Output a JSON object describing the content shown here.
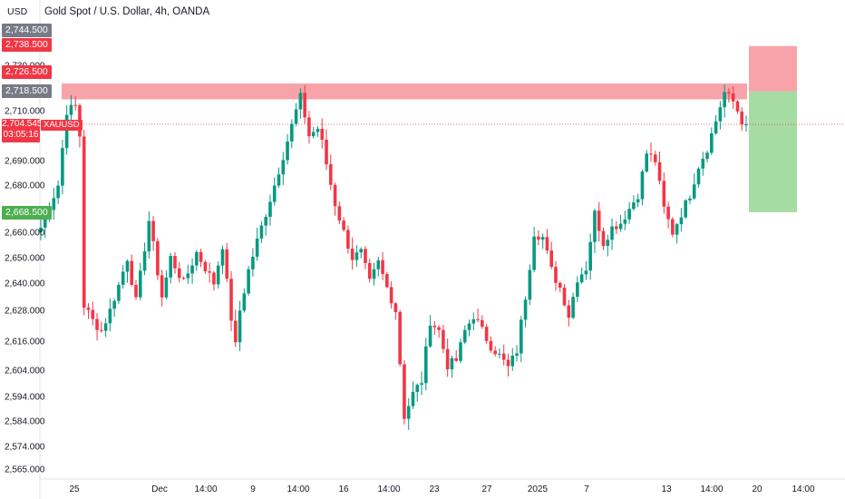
{
  "header": {
    "unit": "USD",
    "title": "Gold Spot / U.S. Dollar, 4h, OANDA"
  },
  "price_labels": {
    "top_gray": "2,744.500",
    "stop_red": "2,738.500",
    "red_2": "2,726.500",
    "entry_gray": "2,718.500",
    "target_green": "2,668.500"
  },
  "current_price": {
    "value": "2,704.545",
    "countdown": "03:05:16",
    "symbol": "XAUUSD"
  },
  "chart_data": {
    "type": "candlestick",
    "title": "Gold Spot / U.S. Dollar, 4h, OANDA",
    "y_ticks": [
      "2,730.000",
      "2,710.000",
      "2,690.000",
      "2,680.000",
      "2,660.000",
      "2,650.000",
      "2,640.000",
      "2,628.000",
      "2,616.000",
      "2,604.000",
      "2,594.000",
      "2,584.000",
      "2,574.000",
      "2,565.000"
    ],
    "x_ticks": [
      "25",
      "Dec",
      "14:00",
      "9",
      "14:00",
      "16",
      "14:00",
      "23",
      "27",
      "2025",
      "7",
      "13",
      "14:00",
      "20",
      "14:00"
    ],
    "ylim": [
      2560,
      2750
    ],
    "resistance_zone": [
      2715,
      2722
    ],
    "trade_setup": {
      "direction": "short",
      "entry": 2718.5,
      "stop": 2738.5,
      "target": 2668.5
    },
    "path_points": [
      [
        0,
        2662
      ],
      [
        4,
        2680
      ],
      [
        6,
        2710
      ],
      [
        8,
        2712
      ],
      [
        9,
        2700
      ],
      [
        10,
        2630
      ],
      [
        12,
        2624
      ],
      [
        14,
        2620
      ],
      [
        16,
        2628
      ],
      [
        20,
        2650
      ],
      [
        22,
        2632
      ],
      [
        25,
        2665
      ],
      [
        28,
        2634
      ],
      [
        30,
        2650
      ],
      [
        33,
        2640
      ],
      [
        36,
        2652
      ],
      [
        40,
        2640
      ],
      [
        42,
        2655
      ],
      [
        44,
        2625
      ],
      [
        45,
        2614
      ],
      [
        46,
        2628
      ],
      [
        48,
        2645
      ],
      [
        52,
        2668
      ],
      [
        56,
        2692
      ],
      [
        60,
        2716
      ],
      [
        62,
        2700
      ],
      [
        64,
        2703
      ],
      [
        65,
        2697
      ],
      [
        68,
        2672
      ],
      [
        70,
        2660
      ],
      [
        72,
        2650
      ],
      [
        74,
        2652
      ],
      [
        76,
        2640
      ],
      [
        78,
        2648
      ],
      [
        80,
        2638
      ],
      [
        82,
        2628
      ],
      [
        84,
        2586
      ],
      [
        86,
        2595
      ],
      [
        88,
        2600
      ],
      [
        90,
        2624
      ],
      [
        92,
        2620
      ],
      [
        94,
        2606
      ],
      [
        96,
        2608
      ],
      [
        98,
        2620
      ],
      [
        100,
        2626
      ],
      [
        102,
        2620
      ],
      [
        104,
        2614
      ],
      [
        106,
        2610
      ],
      [
        108,
        2605
      ],
      [
        110,
        2612
      ],
      [
        112,
        2634
      ],
      [
        114,
        2660
      ],
      [
        116,
        2658
      ],
      [
        118,
        2645
      ],
      [
        120,
        2638
      ],
      [
        122,
        2626
      ],
      [
        124,
        2642
      ],
      [
        126,
        2646
      ],
      [
        128,
        2668
      ],
      [
        130,
        2656
      ],
      [
        132,
        2662
      ],
      [
        134,
        2664
      ],
      [
        136,
        2670
      ],
      [
        138,
        2676
      ],
      [
        140,
        2693
      ],
      [
        142,
        2690
      ],
      [
        144,
        2670
      ],
      [
        146,
        2660
      ],
      [
        148,
        2668
      ],
      [
        150,
        2676
      ],
      [
        152,
        2688
      ],
      [
        154,
        2695
      ],
      [
        156,
        2706
      ],
      [
        158,
        2718
      ],
      [
        160,
        2714
      ],
      [
        162,
        2706
      ],
      [
        163,
        2704.5
      ]
    ],
    "annotations": []
  }
}
